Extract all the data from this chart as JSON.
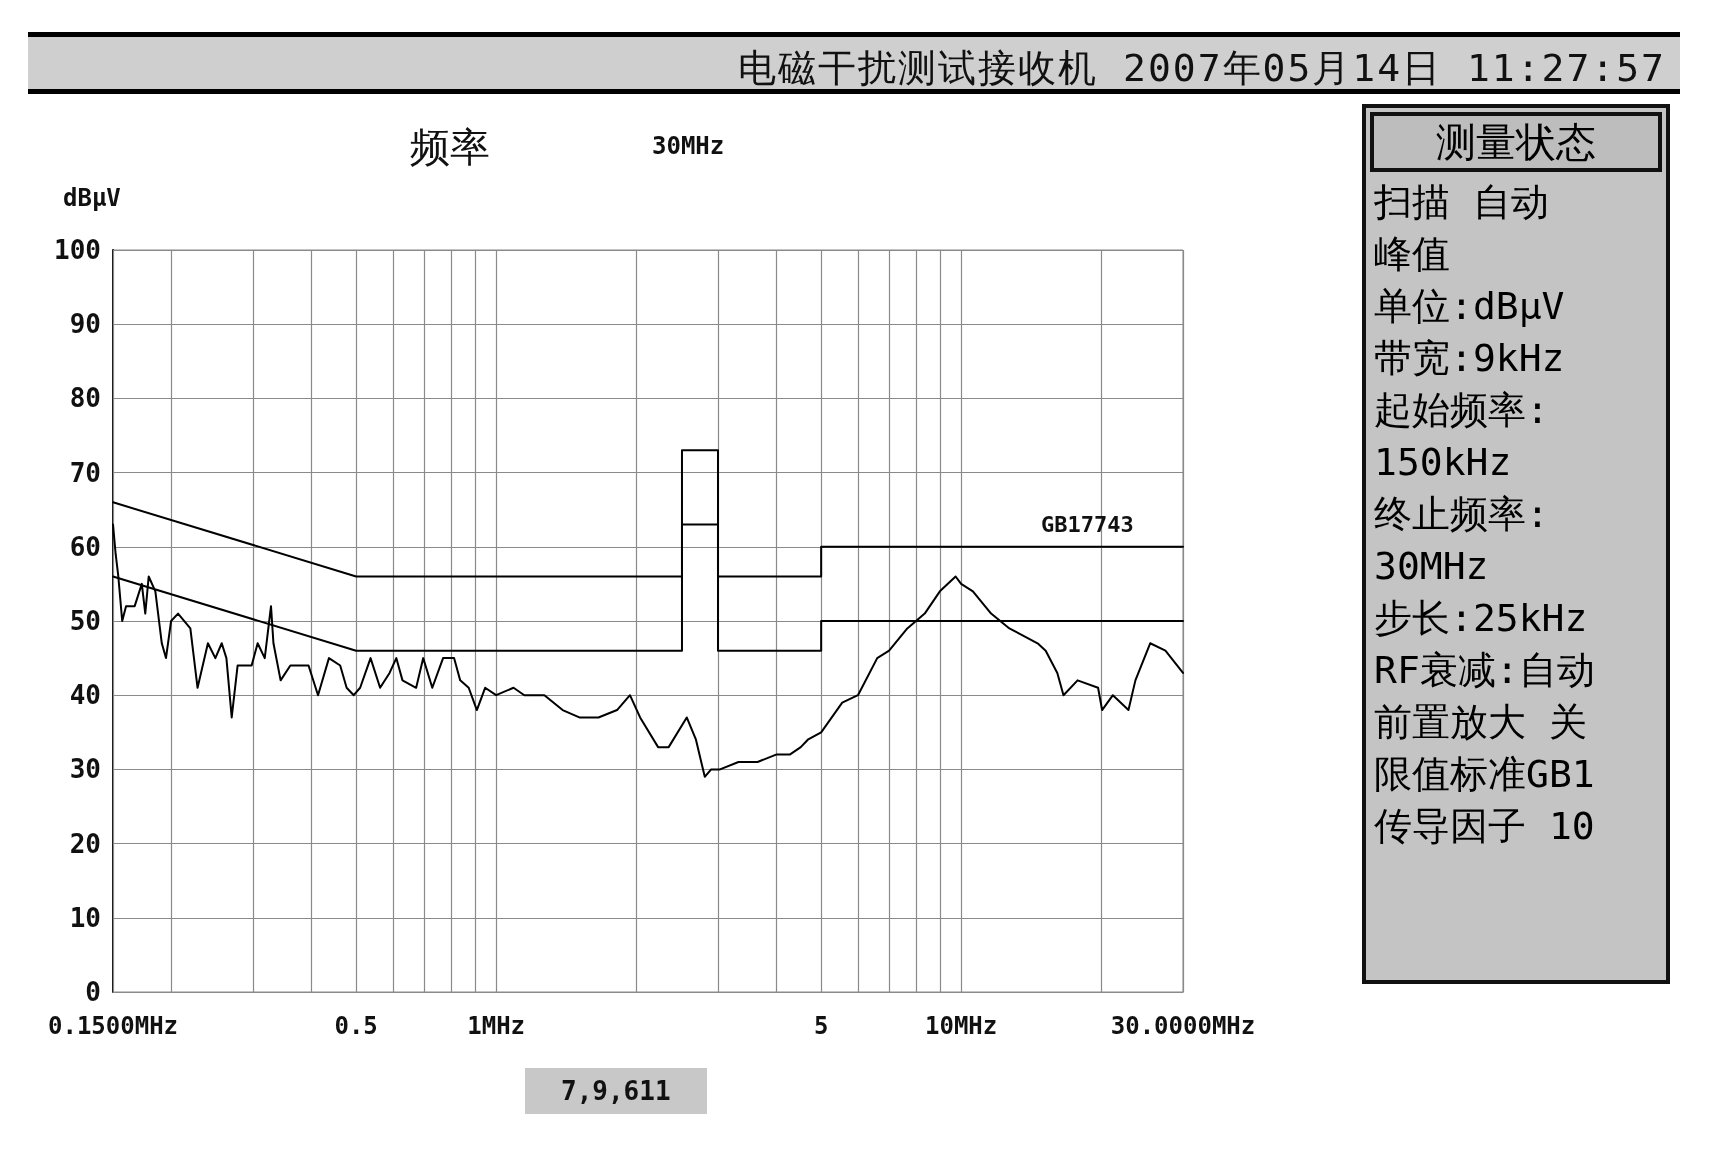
{
  "chart_data": [
    {
      "type": "line",
      "title": "电磁干扰测试接收机 2007年05月14日 11:27:57",
      "ylabel": "dBμV",
      "annotations": [
        "频率",
        "30MHz",
        "7,9,611"
      ],
      "log": "x",
      "grid": true,
      "marker": "none",
      "line_style": "solid",
      "xlim": [
        0.15,
        30
      ],
      "xticks": [
        {
          "value": 0.15,
          "label": "0.1500MHz"
        },
        {
          "value": 0.2,
          "label": null
        },
        {
          "value": 0.3,
          "label": null
        },
        {
          "value": 0.4,
          "label": null
        },
        0.5,
        {
          "value": 0.6,
          "label": null
        },
        {
          "value": 0.7,
          "label": null
        },
        {
          "value": 0.8,
          "label": null
        },
        {
          "value": 0.9,
          "label": null
        },
        {
          "value": 1,
          "label": "1MHz"
        },
        {
          "value": 2,
          "label": null
        },
        {
          "value": 3,
          "label": null
        },
        {
          "value": 4,
          "label": null
        },
        5,
        {
          "value": 6,
          "label": null
        },
        {
          "value": 7,
          "label": null
        },
        {
          "value": 8,
          "label": null
        },
        {
          "value": 9,
          "label": null
        },
        {
          "value": 10,
          "label": "10MHz"
        },
        {
          "value": 20,
          "label": null
        },
        {
          "value": 30,
          "label": "30.0000MHz"
        }
      ],
      "ylim": [
        0,
        100
      ],
      "yticks": [
        0,
        10,
        20,
        30,
        40,
        50,
        60,
        70,
        80,
        90,
        100
      ],
      "series": [
        {
          "color": "#000000",
          "x": [
            0.15,
            0.152,
            0.154,
            0.157,
            0.16,
            0.167,
            0.173,
            0.176,
            0.179,
            0.185,
            0.191,
            0.195,
            0.2,
            0.207,
            0.22,
            0.228,
            0.24,
            0.249,
            0.257,
            0.263,
            0.27,
            0.278,
            0.298,
            0.307,
            0.318,
            0.328,
            0.332,
            0.344,
            0.361,
            0.395,
            0.414,
            0.437,
            0.462,
            0.477,
            0.494,
            0.51,
            0.537,
            0.563,
            0.59,
            0.61,
            0.629,
            0.673,
            0.697,
            0.729,
            0.769,
            0.812,
            0.837,
            0.873,
            0.909,
            0.947,
            1.0,
            1.09,
            1.15,
            1.27,
            1.39,
            1.51,
            1.66,
            1.82,
            1.94,
            2.04,
            2.23,
            2.35,
            2.57,
            2.69,
            2.81,
            2.9,
            3.03,
            3.32,
            3.65,
            4.0,
            4.28,
            4.52,
            4.68,
            5.0,
            5.55,
            6.0,
            6.6,
            7.0,
            7.66,
            8.35,
            9.0,
            9.73,
            10.0,
            10.6,
            11.6,
            12.7,
            14.6,
            15.2,
            16.1,
            16.6,
            17.8,
            19.7,
            20.1,
            21.2,
            22.9,
            23.7,
            25.5,
            27.5,
            30.0
          ],
          "values": [
            63,
            59,
            56,
            50,
            52,
            52,
            55,
            51,
            56,
            54,
            47,
            45,
            50,
            51,
            49,
            41,
            47,
            45,
            47,
            45,
            37,
            44,
            44,
            47,
            45,
            52,
            47,
            42,
            44,
            44,
            40,
            45,
            44,
            41,
            40,
            41,
            45,
            41,
            43,
            45,
            42,
            41,
            45,
            41,
            45,
            45,
            42,
            41,
            38,
            41,
            40,
            41,
            40,
            40,
            38,
            37,
            37,
            38,
            40,
            37,
            33,
            33,
            37,
            34,
            29,
            30,
            30,
            31,
            31,
            32,
            32,
            33,
            34,
            35,
            39,
            40,
            45,
            46,
            49,
            51,
            54,
            56,
            55,
            54,
            51,
            49,
            47,
            46,
            43,
            40,
            42,
            41,
            38,
            40,
            38,
            42,
            47,
            46,
            43
          ]
        },
        {
          "name": "GB17743",
          "color": "#000000",
          "x": [
            0.15,
            0.5,
            2.51,
            2.51,
            3,
            3,
            5,
            5,
            30
          ],
          "values": [
            66,
            56,
            56,
            73,
            73,
            56,
            56,
            60,
            60
          ]
        },
        {
          "color": "#000000",
          "x": [
            0.15,
            0.5,
            2.51,
            2.51,
            3,
            3,
            5,
            5,
            30
          ],
          "values": [
            56,
            46,
            46,
            63,
            63,
            46,
            46,
            50,
            50
          ]
        }
      ]
    },
    {
      "type": "other",
      "title": "测量状态",
      "annotations": [
        "扫描 自动",
        "峰值",
        "单位:dBμV",
        "带宽:9kHz",
        "起始频率:",
        "150kHz",
        "终止频率:",
        "30MHz",
        "步长:25kHz",
        "RF衰减:自动",
        "前置放大 关",
        "限值标准GB1",
        "传导因子 10"
      ]
    }
  ]
}
